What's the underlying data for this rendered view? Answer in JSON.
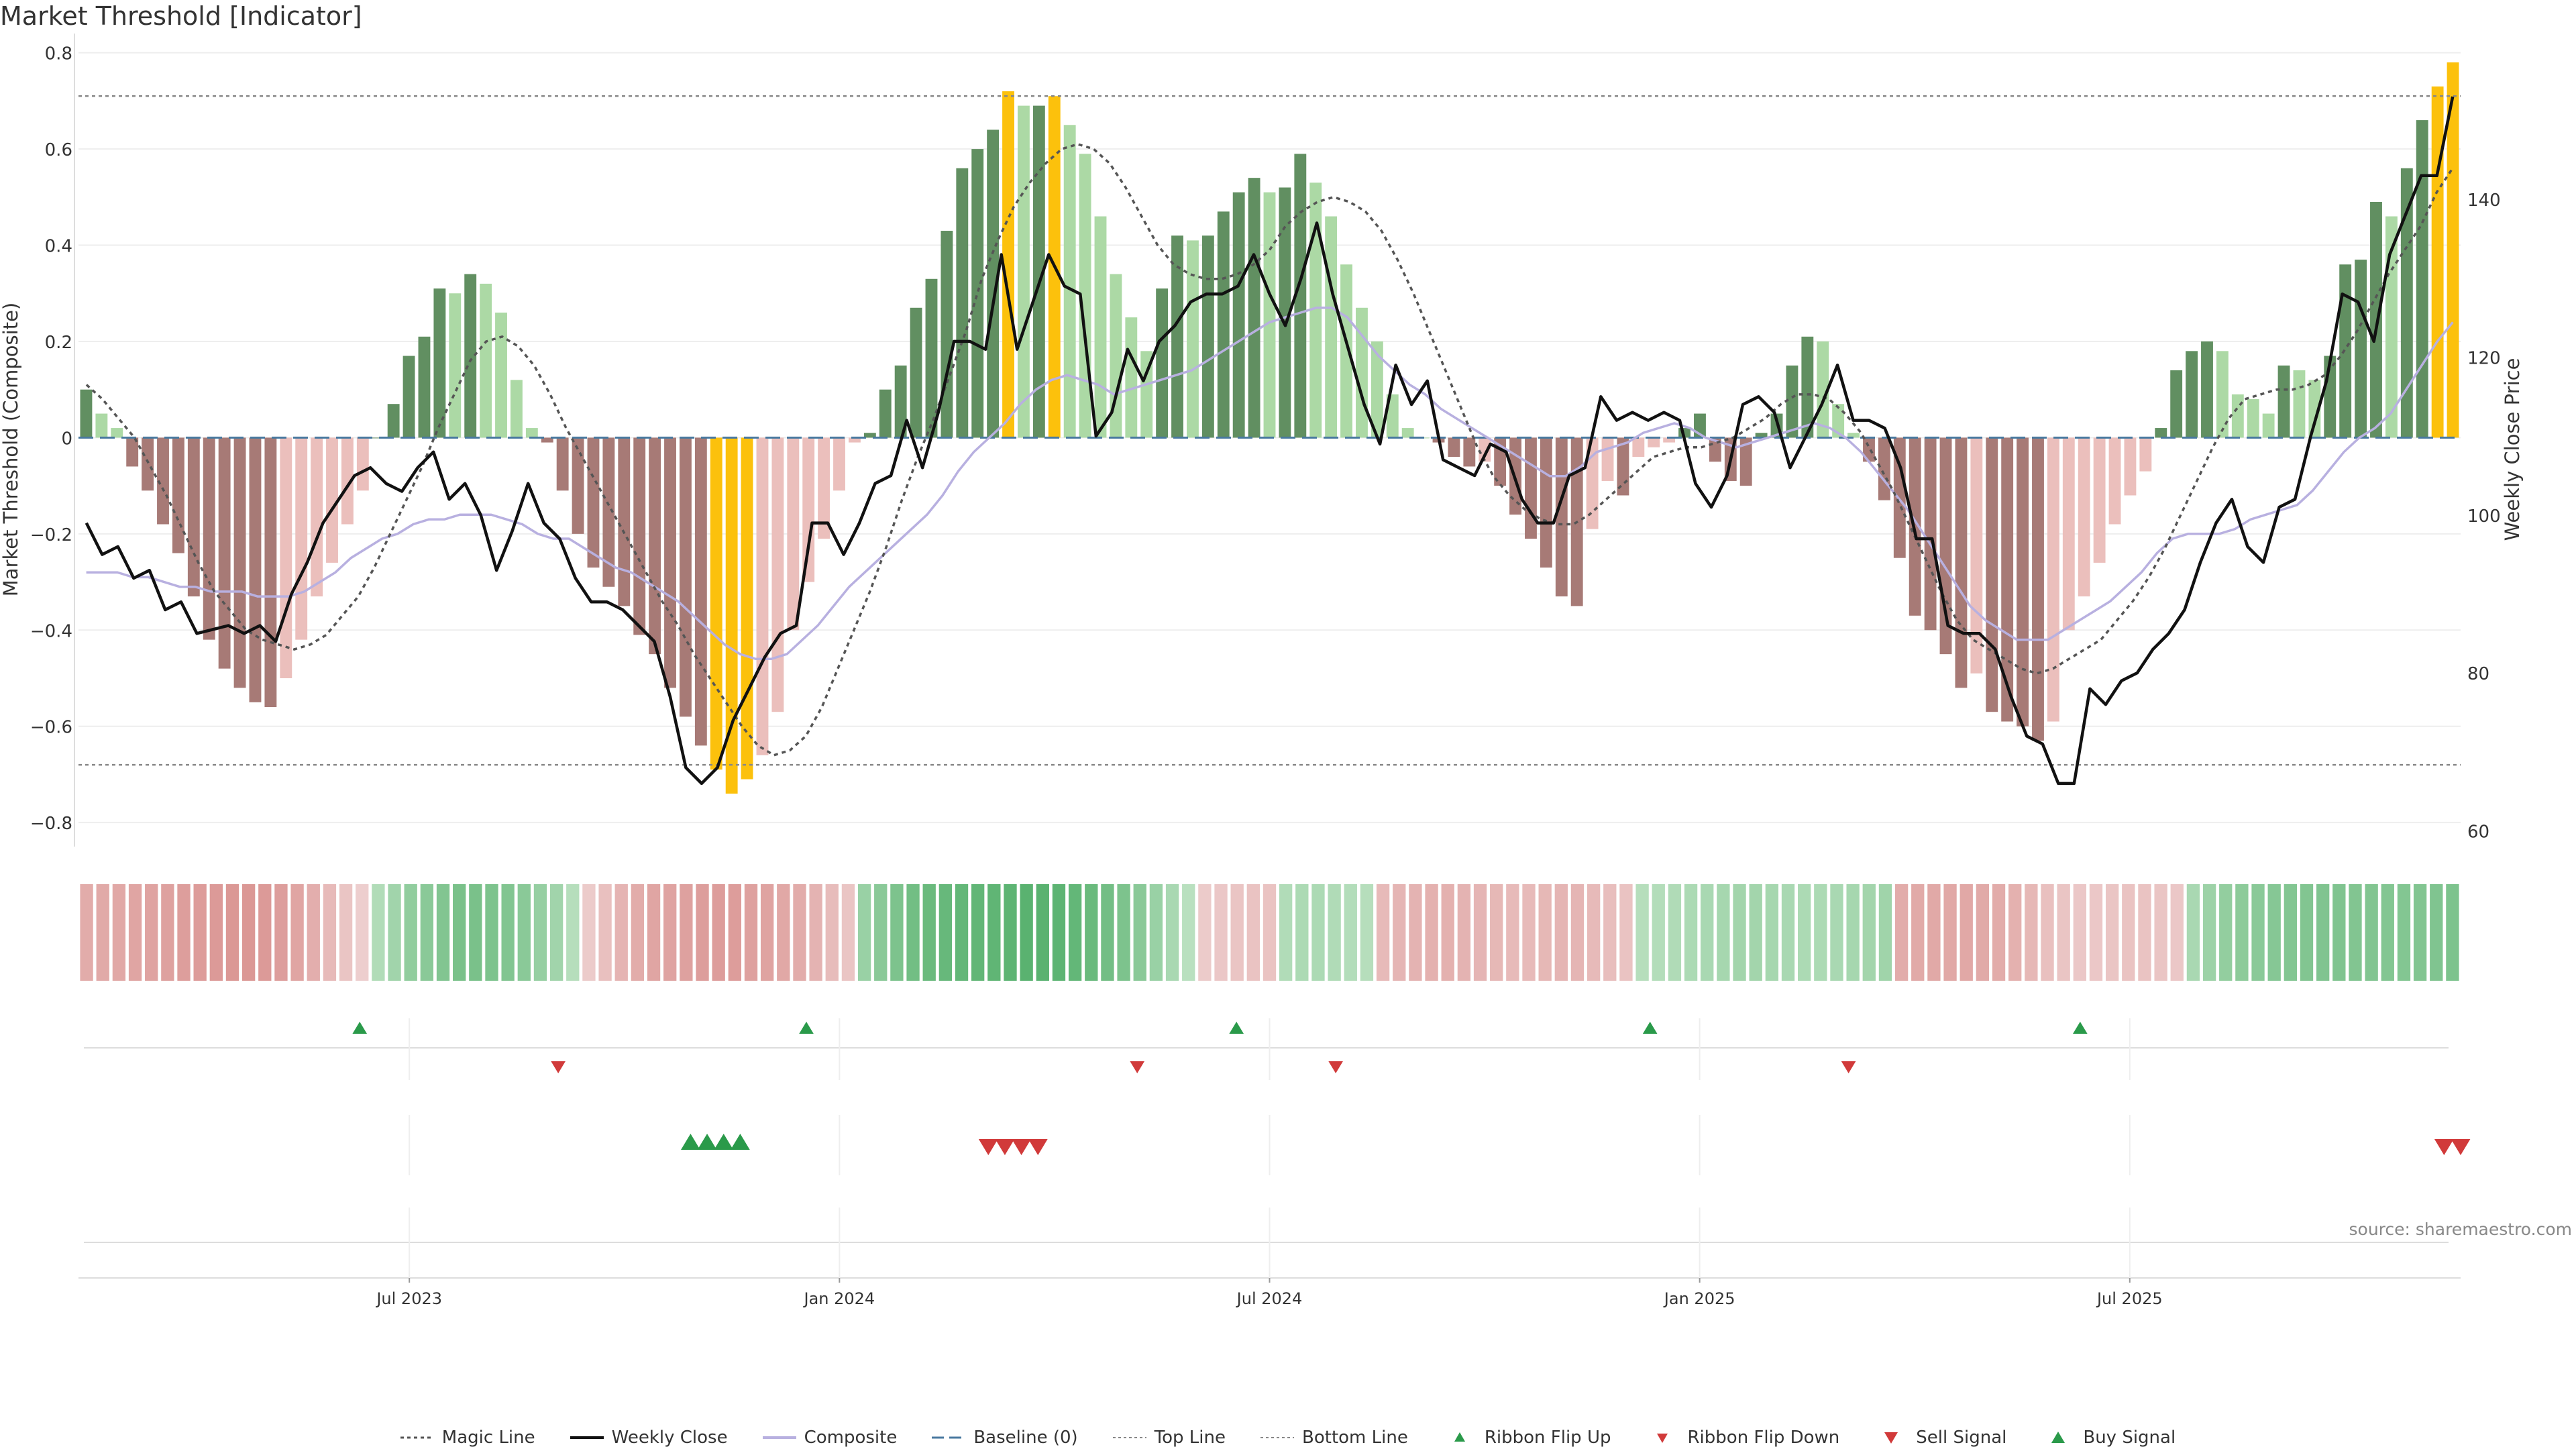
{
  "title": "Market Threshold [Indicator]",
  "source": "source: sharemaestro.com",
  "colors": {
    "pos_dark": "#618f61",
    "pos_light": "#acd9a5",
    "neg_dark": "#a77a76",
    "neg_light": "#ebbfbc",
    "extreme": "#fcc10c",
    "magic": "#555555",
    "close": "#111111",
    "composite": "#b8b0e0",
    "baseline": "#4a7aa0",
    "threshold": "#888888",
    "up_marker": "#2a9a4a",
    "down_marker": "#d13a3a"
  },
  "chart_data": {
    "type": "bar",
    "ylabel_left": "Market Threshold (Composite)",
    "ylabel_right": "Weekly Close Price",
    "ylim_left": [
      -0.85,
      0.84
    ],
    "ylim_right": [
      58,
      161
    ],
    "yticks_left": [
      "0.8",
      "0.6",
      "0.4",
      "0.2",
      "0",
      "−0.2",
      "−0.4",
      "−0.6",
      "−0.8"
    ],
    "yticks_right": [
      "140",
      "120",
      "100",
      "80",
      "60"
    ],
    "x_start_week": 0,
    "x_end_week": 144,
    "xticks": [
      {
        "label": "Jul 2023",
        "week": 20
      },
      {
        "label": "Jan 2024",
        "week": 46
      },
      {
        "label": "Jul 2024",
        "week": 72
      },
      {
        "label": "Jan 2025",
        "week": 98
      },
      {
        "label": "Jul 2025",
        "week": 124
      }
    ],
    "top_line": 0.71,
    "bottom_line": -0.68,
    "threshold_values": [
      0.1,
      0.05,
      0.02,
      -0.06,
      -0.11,
      -0.18,
      -0.24,
      -0.33,
      -0.42,
      -0.48,
      -0.52,
      -0.55,
      -0.56,
      -0.5,
      -0.42,
      -0.33,
      -0.26,
      -0.18,
      -0.11,
      0.0,
      0.07,
      0.17,
      0.21,
      0.31,
      0.3,
      0.34,
      0.32,
      0.26,
      0.12,
      0.02,
      -0.01,
      -0.11,
      -0.2,
      -0.27,
      -0.31,
      -0.35,
      -0.41,
      -0.45,
      -0.52,
      -0.58,
      -0.64,
      -0.69,
      -0.74,
      -0.71,
      -0.66,
      -0.57,
      -0.4,
      -0.3,
      -0.21,
      -0.11,
      -0.01,
      0.01,
      0.1,
      0.15,
      0.27,
      0.33,
      0.43,
      0.56,
      0.6,
      0.64,
      0.72,
      0.69,
      0.69,
      0.71,
      0.65,
      0.59,
      0.46,
      0.34,
      0.25,
      0.18,
      0.31,
      0.42,
      0.41,
      0.42,
      0.47,
      0.51,
      0.54,
      0.51,
      0.52,
      0.59,
      0.53,
      0.46,
      0.36,
      0.27,
      0.2,
      0.09,
      0.02,
      0.0,
      -0.01,
      -0.04,
      -0.06,
      -0.05,
      -0.1,
      -0.16,
      -0.21,
      -0.27,
      -0.33,
      -0.35,
      -0.19,
      -0.09,
      -0.12,
      -0.04,
      -0.02,
      -0.01,
      0.02,
      0.05,
      -0.05,
      -0.09,
      -0.1,
      0.01,
      0.05,
      0.15,
      0.21,
      0.2,
      0.07,
      0.01,
      -0.05,
      -0.13,
      -0.25,
      -0.37,
      -0.4,
      -0.45,
      -0.52,
      -0.49,
      -0.57,
      -0.59,
      -0.6,
      -0.63,
      -0.59,
      -0.4,
      -0.33,
      -0.26,
      -0.18,
      -0.12,
      -0.07,
      0.02,
      0.14,
      0.18,
      0.2,
      0.18,
      0.09,
      0.08,
      0.05,
      0.15,
      0.14,
      0.12,
      0.17,
      0.36,
      0.37,
      0.49,
      0.46,
      0.56,
      0.66,
      0.73,
      0.78
    ],
    "weekly_close": [
      99,
      95,
      96,
      92,
      93,
      88,
      89,
      85,
      85.5,
      86,
      85,
      86,
      84,
      90,
      94,
      99,
      102,
      105,
      106,
      104,
      103,
      106,
      108,
      102,
      104,
      100,
      93,
      98,
      104,
      99,
      97,
      92,
      89,
      89,
      88,
      86,
      84,
      77,
      68,
      66,
      68,
      74,
      78,
      82,
      85,
      86,
      99,
      99,
      95,
      99,
      104,
      105,
      112,
      106,
      113,
      122,
      122,
      121,
      133,
      121,
      127,
      133,
      129,
      128,
      110,
      113,
      121,
      117,
      122,
      124,
      127,
      128,
      128,
      129,
      133,
      128,
      124,
      130,
      137,
      128,
      121,
      114,
      109,
      119,
      114,
      117,
      107,
      106,
      105,
      109,
      108,
      102,
      99,
      99,
      105,
      106,
      115,
      112,
      113,
      112,
      113,
      112,
      104,
      101,
      105,
      114,
      115,
      113,
      106,
      110,
      114,
      119,
      112,
      112,
      111,
      106,
      97,
      97,
      86,
      85,
      85,
      83,
      77,
      72,
      71,
      66,
      66,
      78,
      76,
      79,
      80,
      83,
      85,
      88,
      94,
      99,
      102,
      96,
      94,
      101,
      102,
      110,
      117,
      128,
      127,
      122,
      133,
      138,
      143,
      143,
      153
    ],
    "composite": [
      -0.28,
      -0.28,
      -0.28,
      -0.29,
      -0.29,
      -0.3,
      -0.31,
      -0.31,
      -0.32,
      -0.32,
      -0.32,
      -0.33,
      -0.33,
      -0.33,
      -0.32,
      -0.3,
      -0.28,
      -0.25,
      -0.23,
      -0.21,
      -0.2,
      -0.18,
      -0.17,
      -0.17,
      -0.16,
      -0.16,
      -0.16,
      -0.17,
      -0.18,
      -0.2,
      -0.21,
      -0.21,
      -0.23,
      -0.25,
      -0.27,
      -0.28,
      -0.3,
      -0.32,
      -0.34,
      -0.37,
      -0.4,
      -0.43,
      -0.45,
      -0.46,
      -0.46,
      -0.45,
      -0.42,
      -0.39,
      -0.35,
      -0.31,
      -0.28,
      -0.25,
      -0.22,
      -0.19,
      -0.16,
      -0.12,
      -0.07,
      -0.03,
      0.0,
      0.03,
      0.07,
      0.1,
      0.12,
      0.13,
      0.12,
      0.11,
      0.09,
      0.1,
      0.11,
      0.12,
      0.13,
      0.14,
      0.16,
      0.18,
      0.2,
      0.22,
      0.24,
      0.25,
      0.26,
      0.27,
      0.27,
      0.25,
      0.21,
      0.17,
      0.14,
      0.11,
      0.09,
      0.06,
      0.04,
      0.02,
      0.0,
      -0.02,
      -0.04,
      -0.06,
      -0.08,
      -0.08,
      -0.06,
      -0.03,
      -0.02,
      -0.01,
      0.01,
      0.02,
      0.03,
      0.02,
      0.0,
      -0.01,
      -0.02,
      -0.01,
      0.0,
      0.01,
      0.02,
      0.03,
      0.02,
      0.0,
      -0.03,
      -0.07,
      -0.11,
      -0.15,
      -0.2,
      -0.25,
      -0.3,
      -0.35,
      -0.38,
      -0.4,
      -0.42,
      -0.42,
      -0.42,
      -0.4,
      -0.38,
      -0.36,
      -0.34,
      -0.31,
      -0.28,
      -0.24,
      -0.21,
      -0.2,
      -0.2,
      -0.2,
      -0.19,
      -0.17,
      -0.16,
      -0.15,
      -0.14,
      -0.11,
      -0.07,
      -0.03,
      0.0,
      0.02,
      0.05,
      0.1,
      0.15,
      0.2,
      0.24
    ],
    "magic_line": [
      0.11,
      0.08,
      0.04,
      0.0,
      -0.06,
      -0.12,
      -0.19,
      -0.26,
      -0.32,
      -0.36,
      -0.4,
      -0.42,
      -0.43,
      -0.44,
      -0.43,
      -0.41,
      -0.37,
      -0.33,
      -0.27,
      -0.2,
      -0.13,
      -0.06,
      0.02,
      0.09,
      0.16,
      0.2,
      0.21,
      0.19,
      0.15,
      0.09,
      0.02,
      -0.04,
      -0.1,
      -0.16,
      -0.22,
      -0.28,
      -0.34,
      -0.39,
      -0.45,
      -0.5,
      -0.55,
      -0.6,
      -0.64,
      -0.66,
      -0.65,
      -0.62,
      -0.56,
      -0.48,
      -0.4,
      -0.32,
      -0.23,
      -0.13,
      -0.04,
      0.04,
      0.13,
      0.22,
      0.33,
      0.41,
      0.48,
      0.53,
      0.57,
      0.6,
      0.61,
      0.6,
      0.57,
      0.52,
      0.46,
      0.4,
      0.36,
      0.34,
      0.33,
      0.33,
      0.34,
      0.36,
      0.39,
      0.44,
      0.47,
      0.49,
      0.5,
      0.49,
      0.47,
      0.43,
      0.37,
      0.3,
      0.22,
      0.14,
      0.06,
      -0.02,
      -0.08,
      -0.12,
      -0.15,
      -0.17,
      -0.18,
      -0.18,
      -0.16,
      -0.13,
      -0.1,
      -0.07,
      -0.04,
      -0.03,
      -0.02,
      -0.02,
      -0.01,
      0.0,
      0.02,
      0.04,
      0.07,
      0.09,
      0.09,
      0.08,
      0.05,
      0.01,
      -0.05,
      -0.11,
      -0.18,
      -0.25,
      -0.32,
      -0.38,
      -0.42,
      -0.44,
      -0.46,
      -0.48,
      -0.49,
      -0.48,
      -0.46,
      -0.44,
      -0.42,
      -0.38,
      -0.34,
      -0.29,
      -0.23,
      -0.16,
      -0.09,
      -0.02,
      0.04,
      0.08,
      0.09,
      0.1,
      0.1,
      0.11,
      0.13,
      0.17,
      0.22,
      0.28,
      0.34,
      0.39,
      0.44,
      0.51,
      0.56
    ],
    "ribbon_values": [
      -0.42,
      -0.44,
      -0.46,
      -0.48,
      -0.5,
      -0.52,
      -0.54,
      -0.56,
      -0.58,
      -0.6,
      -0.6,
      -0.58,
      -0.54,
      -0.48,
      -0.4,
      -0.3,
      -0.2,
      -0.12,
      0.25,
      0.35,
      0.45,
      0.5,
      0.55,
      0.6,
      0.6,
      0.58,
      0.55,
      0.5,
      0.42,
      0.35,
      0.22,
      -0.15,
      -0.25,
      -0.35,
      -0.42,
      -0.48,
      -0.5,
      -0.52,
      -0.54,
      -0.55,
      -0.55,
      -0.52,
      -0.5,
      -0.46,
      -0.42,
      -0.36,
      -0.28,
      -0.2,
      0.4,
      0.5,
      0.58,
      0.65,
      0.7,
      0.72,
      0.74,
      0.75,
      0.76,
      0.78,
      0.8,
      0.8,
      0.78,
      0.74,
      0.7,
      0.64,
      0.58,
      0.5,
      0.4,
      0.3,
      0.2,
      -0.15,
      -0.18,
      -0.2,
      -0.22,
      -0.22,
      0.25,
      0.28,
      0.28,
      0.26,
      0.24,
      0.22,
      -0.3,
      -0.34,
      -0.36,
      -0.38,
      -0.38,
      -0.36,
      -0.34,
      -0.32,
      -0.3,
      -0.3,
      -0.32,
      -0.34,
      -0.34,
      -0.3,
      -0.26,
      -0.22,
      0.22,
      0.24,
      0.26,
      0.28,
      0.3,
      0.32,
      0.34,
      0.34,
      0.32,
      0.3,
      0.28,
      0.28,
      0.3,
      0.32,
      0.34,
      0.36,
      -0.42,
      -0.44,
      -0.45,
      -0.46,
      -0.46,
      -0.44,
      -0.42,
      -0.38,
      -0.32,
      -0.25,
      -0.2,
      -0.18,
      -0.18,
      -0.2,
      -0.22,
      -0.22,
      -0.2,
      -0.18,
      0.3,
      0.38,
      0.44,
      0.48,
      0.5,
      0.52,
      0.54,
      0.55,
      0.56,
      0.56,
      0.55,
      0.55,
      0.54,
      0.54,
      0.55,
      0.56,
      0.58
    ],
    "ribbon_flip_up_weeks": [
      17,
      44,
      70,
      95,
      121
    ],
    "ribbon_flip_down_weeks": [
      29,
      64,
      76,
      107
    ],
    "buy_signal_weeks": [
      37,
      38,
      39,
      40
    ],
    "sell_signal_weeks": [
      55,
      56,
      57,
      58,
      143,
      144
    ],
    "legend": [
      "Magic Line",
      "Weekly Close",
      "Composite",
      "Baseline (0)",
      "Top Line",
      "Bottom Line",
      "Ribbon Flip Up",
      "Ribbon Flip Down",
      "Sell Signal",
      "Buy Signal"
    ]
  }
}
